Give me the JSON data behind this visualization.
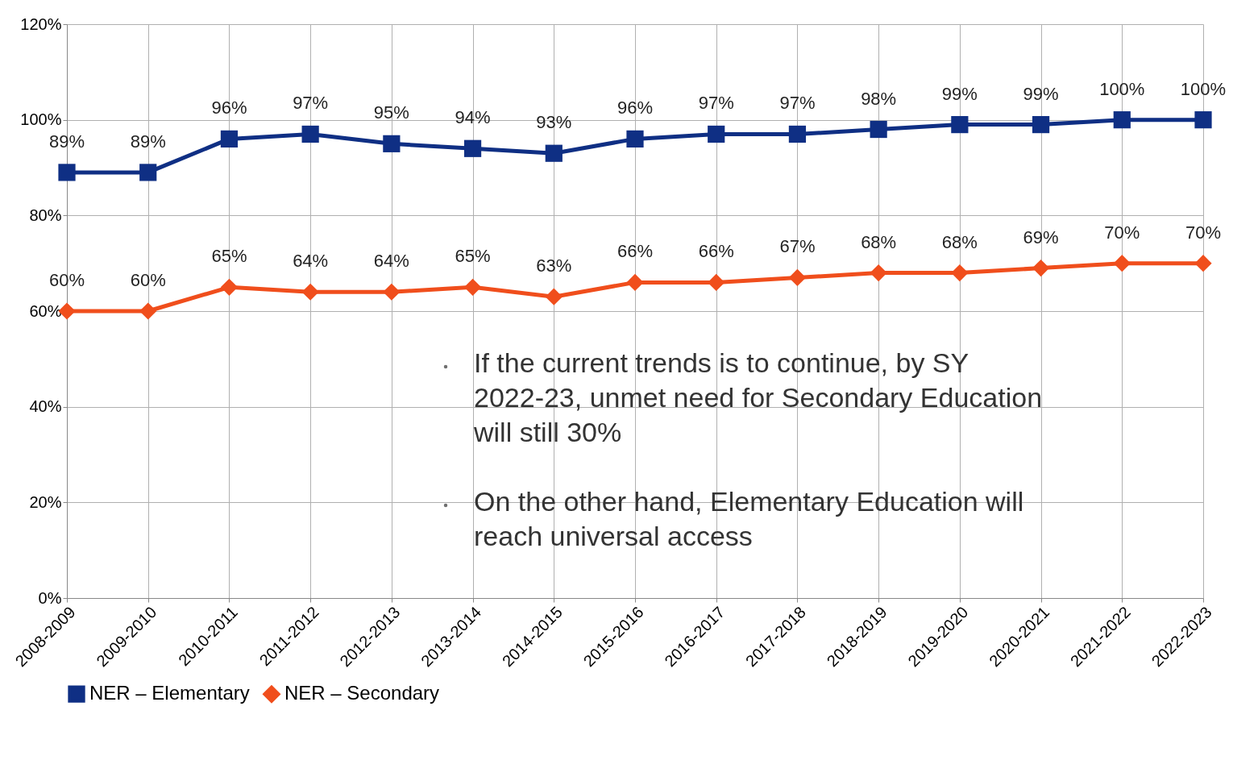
{
  "chart_data": {
    "type": "line",
    "categories": [
      "2008-2009",
      "2009-2010",
      "2010-2011",
      "2011-2012",
      "2012-2013",
      "2013-2014",
      "2014-2015",
      "2015-2016",
      "2016-2017",
      "2017-2018",
      "2018-2019",
      "2019-2020",
      "2020-2021",
      "2021-2022",
      "2022-2023"
    ],
    "series": [
      {
        "name": "NER – Elementary",
        "color": "#0f2f84",
        "marker": "square",
        "values": [
          89,
          89,
          96,
          97,
          95,
          94,
          93,
          96,
          97,
          97,
          98,
          99,
          99,
          100,
          100
        ],
        "value_labels": [
          "89%",
          "89%",
          "96%",
          "97%",
          "95%",
          "94%",
          "93%",
          "96%",
          "97%",
          "97%",
          "98%",
          "99%",
          "99%",
          "100%",
          "100%"
        ]
      },
      {
        "name": "NER – Secondary",
        "color": "#f04e1c",
        "marker": "diamond",
        "values": [
          60,
          60,
          65,
          64,
          64,
          65,
          63,
          66,
          66,
          67,
          68,
          68,
          69,
          70,
          70
        ],
        "value_labels": [
          "60%",
          "60%",
          "65%",
          "64%",
          "64%",
          "65%",
          "63%",
          "66%",
          "66%",
          "67%",
          "68%",
          "68%",
          "69%",
          "70%",
          "70%"
        ]
      }
    ],
    "ylim": [
      0,
      120
    ],
    "yticks": [
      {
        "value": 0,
        "label": "0%"
      },
      {
        "value": 20,
        "label": "20%"
      },
      {
        "value": 40,
        "label": "40%"
      },
      {
        "value": 60,
        "label": "60%"
      },
      {
        "value": 80,
        "label": "80%"
      },
      {
        "value": 100,
        "label": "100%"
      },
      {
        "value": 120,
        "label": "120%"
      }
    ],
    "grid": true,
    "legend": "bottom",
    "line_style": "solid",
    "annotations": [
      "If the current trends is to continue, by SY 2022-23, unmet need for Secondary Education will still 30%",
      "On the other hand, Elementary Education will reach universal access"
    ]
  }
}
